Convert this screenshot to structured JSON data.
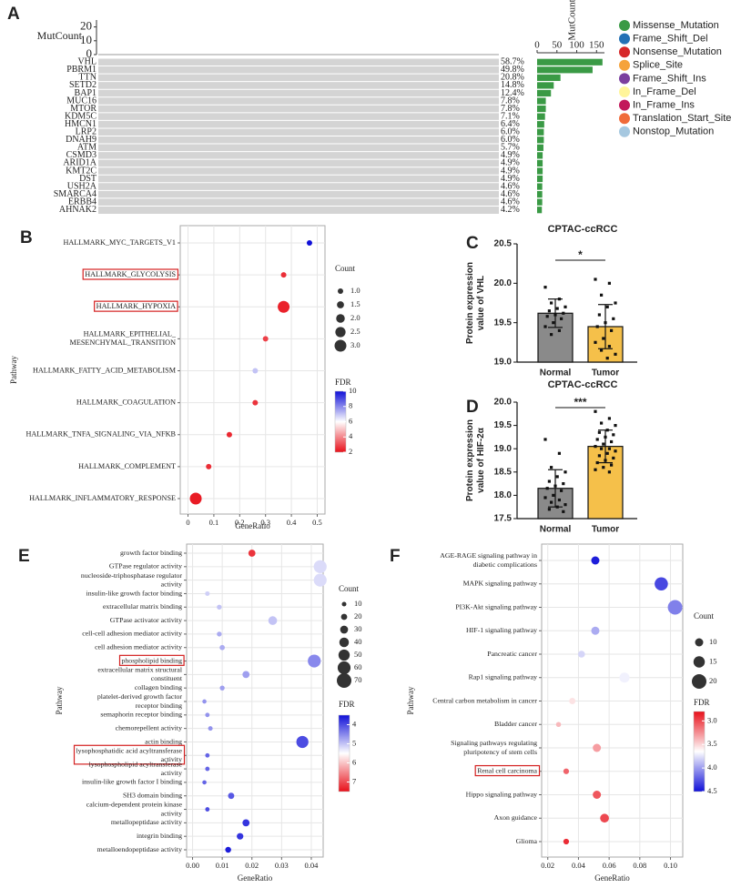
{
  "chart_data": [
    {
      "type": "oncoplot",
      "label": "A",
      "mutcount_label": "MutCount",
      "mutcount_lim": [
        0,
        25
      ],
      "mutcount_ticks": [
        0,
        10,
        20
      ],
      "genes": [
        "VHL",
        "PBRM1",
        "TTN",
        "SETD2",
        "BAP1",
        "MUC16",
        "MTOR",
        "KDM5C",
        "HMCN1",
        "LRP2",
        "DNAH9",
        "ATM",
        "CSMD3",
        "ARID1A",
        "KMT2C",
        "DST",
        "USH2A",
        "SMARCA4",
        "ERBB4",
        "AHNAK2"
      ],
      "values": [
        58.7,
        49.8,
        20.8,
        14.8,
        12.4,
        7.8,
        7.8,
        7.1,
        6.4,
        6.0,
        6.0,
        5.7,
        4.9,
        4.9,
        4.9,
        4.9,
        4.6,
        4.6,
        4.6,
        4.2
      ],
      "value_labels": [
        "58.7%",
        "49.8%",
        "20.8%",
        "14.8%",
        "12.4%",
        "7.8%",
        "7.8%",
        "7.1%",
        "6.4%",
        "6.0%",
        "6.0%",
        "5.7%",
        "4.9%",
        "4.9%",
        "4.9%",
        "4.9%",
        "4.6%",
        "4.6%",
        "4.6%",
        "4.2%"
      ],
      "counts": [
        165,
        140,
        59,
        42,
        35,
        22,
        22,
        20,
        18,
        17,
        17,
        16,
        14,
        14,
        14,
        14,
        13,
        13,
        13,
        12
      ],
      "count_label": "MutCount",
      "count_lim": [
        0,
        170
      ],
      "count_ticks": [
        0,
        50,
        100,
        150
      ],
      "bar_color": "#3a9a45",
      "legend": [
        {
          "name": "Missense_Mutation",
          "color": "#3a9a45"
        },
        {
          "name": "Frame_Shift_Del",
          "color": "#2471b5"
        },
        {
          "name": "Nonsense_Mutation",
          "color": "#d62728"
        },
        {
          "name": "Splice_Site",
          "color": "#f5a33b"
        },
        {
          "name": "Frame_Shift_Ins",
          "color": "#7b3f9e"
        },
        {
          "name": "In_Frame_Del",
          "color": "#fff59a"
        },
        {
          "name": "In_Frame_Ins",
          "color": "#c2185b"
        },
        {
          "name": "Translation_Start_Site",
          "color": "#f06b3a"
        },
        {
          "name": "Nonstop_Mutation",
          "color": "#a6c8e0"
        }
      ]
    },
    {
      "type": "dot",
      "label": "B",
      "xlabel": "GeneRatio",
      "ylabel": "Pathway",
      "categories": [
        "HALLMARK_MYC_TARGETS_V1",
        "HALLMARK_GLYCOLYSIS",
        "HALLMARK_HYPOXIA",
        [
          "HALLMARK_EPITHELIAL_",
          "MESENCHYMAL_TRANSITION"
        ],
        "HALLMARK_FATTY_ACID_METABOLISM",
        "HALLMARK_COAGULATION",
        "HALLMARK_TNFA_SIGNALING_VIA_NFKB",
        "HALLMARK_COMPLEMENT",
        "HALLMARK_INFLAMMATORY_RESPONSE"
      ],
      "values": [
        0.47,
        0.37,
        0.37,
        0.3,
        0.26,
        0.26,
        0.16,
        0.08,
        0.03
      ],
      "sizes": [
        1,
        1,
        3,
        1,
        1,
        1,
        1,
        1,
        3
      ],
      "fdr": [
        10,
        2.5,
        2.3,
        2.8,
        7,
        2.6,
        2.4,
        2.5,
        2.2
      ],
      "xlim": [
        -0.03,
        0.53
      ],
      "xticks": [
        0,
        0.1,
        0.2,
        0.3,
        0.4,
        0.5
      ],
      "size_title": "Count",
      "size_ticks": [
        {
          "value": 1,
          "label": "1.0"
        },
        {
          "value": 1.5,
          "label": "1.5"
        },
        {
          "value": 2,
          "label": "2.0"
        },
        {
          "value": 2.5,
          "label": "2.5"
        },
        {
          "value": 3,
          "label": "3.0"
        }
      ],
      "color_title": "FDR",
      "color_lim": [
        2,
        10
      ],
      "color_ticks": [
        2,
        4,
        6,
        8,
        10
      ],
      "colors": [
        "#e8101a",
        "#ffffff",
        "#1010d8"
      ],
      "color_low_on_top": false,
      "highlight": [
        1,
        2
      ]
    },
    {
      "type": "barscatter",
      "label": "C",
      "title": "CPTAC-ccRCC",
      "ylabel": [
        "Protein expression",
        "value of VHL"
      ],
      "categories": [
        "Normal",
        "Tumor"
      ],
      "values": [
        19.62,
        19.45
      ],
      "errors": [
        0.18,
        0.28
      ],
      "colors": [
        "#8a8a8a",
        "#f5c04a"
      ],
      "points": [
        [
          19.95,
          19.8,
          19.75,
          19.7,
          19.68,
          19.65,
          19.62,
          19.6,
          19.58,
          19.55,
          19.5,
          19.45,
          19.4,
          19.35
        ],
        [
          20.05,
          20.0,
          19.85,
          19.75,
          19.7,
          19.6,
          19.55,
          19.5,
          19.45,
          19.4,
          19.3,
          19.25,
          19.2,
          19.15,
          19.1,
          19.05
        ]
      ],
      "ylim": [
        19.0,
        20.5
      ],
      "yticks": [
        {
          "value": 19,
          "label": "19.0"
        },
        {
          "value": 19.5,
          "label": "19.5"
        },
        {
          "value": 20,
          "label": "20.0"
        },
        {
          "value": 20.5,
          "label": "20.5"
        }
      ],
      "significance": "*"
    },
    {
      "type": "barscatter",
      "label": "D",
      "title": "CPTAC-ccRCC",
      "ylabel": [
        "Protein expression",
        "value of HIF-2α"
      ],
      "categories": [
        "Normal",
        "Tumor"
      ],
      "values": [
        18.15,
        19.05
      ],
      "errors": [
        0.4,
        0.35
      ],
      "colors": [
        "#8a8a8a",
        "#f5c04a"
      ],
      "points": [
        [
          19.2,
          18.9,
          18.6,
          18.5,
          18.4,
          18.3,
          18.25,
          18.2,
          18.15,
          18.1,
          18.0,
          17.95,
          17.9,
          17.85,
          17.8,
          17.75,
          17.7,
          17.65
        ],
        [
          19.8,
          19.65,
          19.55,
          19.5,
          19.4,
          19.35,
          19.3,
          19.25,
          19.2,
          19.15,
          19.1,
          19.05,
          19.0,
          19.0,
          18.95,
          18.9,
          18.85,
          18.8,
          18.75,
          18.7,
          18.65,
          18.6,
          18.55,
          18.5
        ]
      ],
      "ylim": [
        17.5,
        20.0
      ],
      "yticks": [
        17.5,
        {
          "value": 18,
          "label": "18.0"
        },
        18.5,
        {
          "value": 19,
          "label": "19.0"
        },
        19.5,
        {
          "value": 20,
          "label": "20.0"
        }
      ],
      "significance": "***"
    },
    {
      "type": "dot",
      "label": "E",
      "xlabel": "GeneRatio",
      "ylabel": "Pathway",
      "categories": [
        "growth factor binding",
        "GTPase regulator activity",
        [
          "nucleoside-triphosphatase regulator",
          "activity"
        ],
        "insulin-like growth factor binding",
        "extracellular matrix binding",
        "GTPase activator activity",
        "cell-cell adhesion mediator activity",
        "cell adhesion mediator activity",
        "phospholipid binding",
        [
          "extracellular matrix structural",
          "constituent"
        ],
        "collagen binding",
        [
          "platelet-derived growth factor",
          "receptor binding"
        ],
        "semaphorin receptor binding",
        "chemorepellent activity",
        "actin binding",
        [
          "lysophosphatidic acid acyltransferase",
          "activity"
        ],
        [
          "lysophospholipid acyltransferase",
          "activity"
        ],
        "insulin-like growth factor I binding",
        "SH3 domain binding",
        [
          "calcium-dependent protein kinase",
          "activity"
        ],
        "metallopeptidase activity",
        "integrin binding",
        "metalloendopeptidase activity"
      ],
      "values": [
        0.02,
        0.043,
        0.043,
        0.005,
        0.009,
        0.027,
        0.009,
        0.01,
        0.041,
        0.018,
        0.01,
        0.004,
        0.005,
        0.006,
        0.037,
        0.005,
        0.005,
        0.004,
        0.013,
        0.005,
        0.018,
        0.016,
        0.012
      ],
      "sizes": [
        25,
        60,
        60,
        10,
        12,
        35,
        12,
        14,
        60,
        25,
        12,
        8,
        9,
        10,
        55,
        9,
        9,
        8,
        20,
        9,
        25,
        22,
        18
      ],
      "fdr": [
        7.2,
        5.2,
        5.2,
        5.1,
        5.0,
        5.0,
        4.8,
        4.8,
        4.5,
        4.7,
        4.7,
        4.6,
        4.6,
        4.6,
        4.0,
        4.2,
        4.2,
        4.2,
        4.1,
        4.0,
        3.8,
        3.8,
        3.6
      ],
      "xlim": [
        -0.002,
        0.044
      ],
      "xticks": [
        {
          "value": 0,
          "label": "0.00"
        },
        {
          "value": 0.01,
          "label": "0.01"
        },
        {
          "value": 0.02,
          "label": "0.02"
        },
        {
          "value": 0.03,
          "label": "0.03"
        },
        {
          "value": 0.04,
          "label": "0.04"
        }
      ],
      "size_title": "Count",
      "size_ticks": [
        10,
        20,
        30,
        40,
        50,
        60,
        70
      ],
      "color_title": "FDR",
      "color_lim": [
        3.5,
        7.5
      ],
      "color_ticks": [
        4,
        5,
        6,
        7
      ],
      "colors": [
        "#1010d8",
        "#ffffff",
        "#e8101a"
      ],
      "color_low_on_top": true,
      "highlight": [
        8,
        15
      ]
    },
    {
      "type": "dot",
      "label": "F",
      "xlabel": "GeneRatio",
      "ylabel": "Pathway",
      "categories": [
        [
          "AGE-RAGE signaling pathway in",
          "diabetic complications"
        ],
        "MAPK signaling pathway",
        "PI3K-Akt signaling pathway",
        "HIF-1 signaling pathway",
        "Pancreatic cancer",
        "Rap1 signaling pathway",
        "Central carbon metabolism in cancer",
        "Bladder cancer",
        [
          "Signaling pathways regulating",
          "pluripotency of stem cells"
        ],
        "Renal cell carcinoma",
        "Hippo signaling pathway",
        "Axon guidance",
        "Glioma"
      ],
      "values": [
        0.051,
        0.094,
        0.103,
        0.051,
        0.042,
        0.07,
        0.036,
        0.027,
        0.052,
        0.032,
        0.052,
        0.057,
        0.032
      ],
      "sizes": [
        10,
        18,
        20,
        10,
        8,
        13,
        7,
        5,
        10,
        6,
        10,
        11,
        6
      ],
      "fdr": [
        4.45,
        4.3,
        4.1,
        3.95,
        3.8,
        3.7,
        3.55,
        3.4,
        3.3,
        3.1,
        3.05,
        3.0,
        2.9
      ],
      "xlim": [
        0.016,
        0.108
      ],
      "xticks": [
        0.02,
        0.04,
        0.06,
        0.08,
        {
          "value": 0.1,
          "label": "0.10"
        }
      ],
      "size_title": "Count",
      "size_ticks": [
        10,
        15,
        20
      ],
      "color_title": "FDR",
      "color_lim": [
        2.8,
        4.5
      ],
      "color_ticks": [
        {
          "value": 3,
          "label": "3.0"
        },
        3.5,
        {
          "value": 4,
          "label": "4.0"
        },
        4.5
      ],
      "colors": [
        "#e8101a",
        "#ffffff",
        "#1010d8"
      ],
      "color_low_on_top": true,
      "highlight": [
        9
      ]
    }
  ]
}
